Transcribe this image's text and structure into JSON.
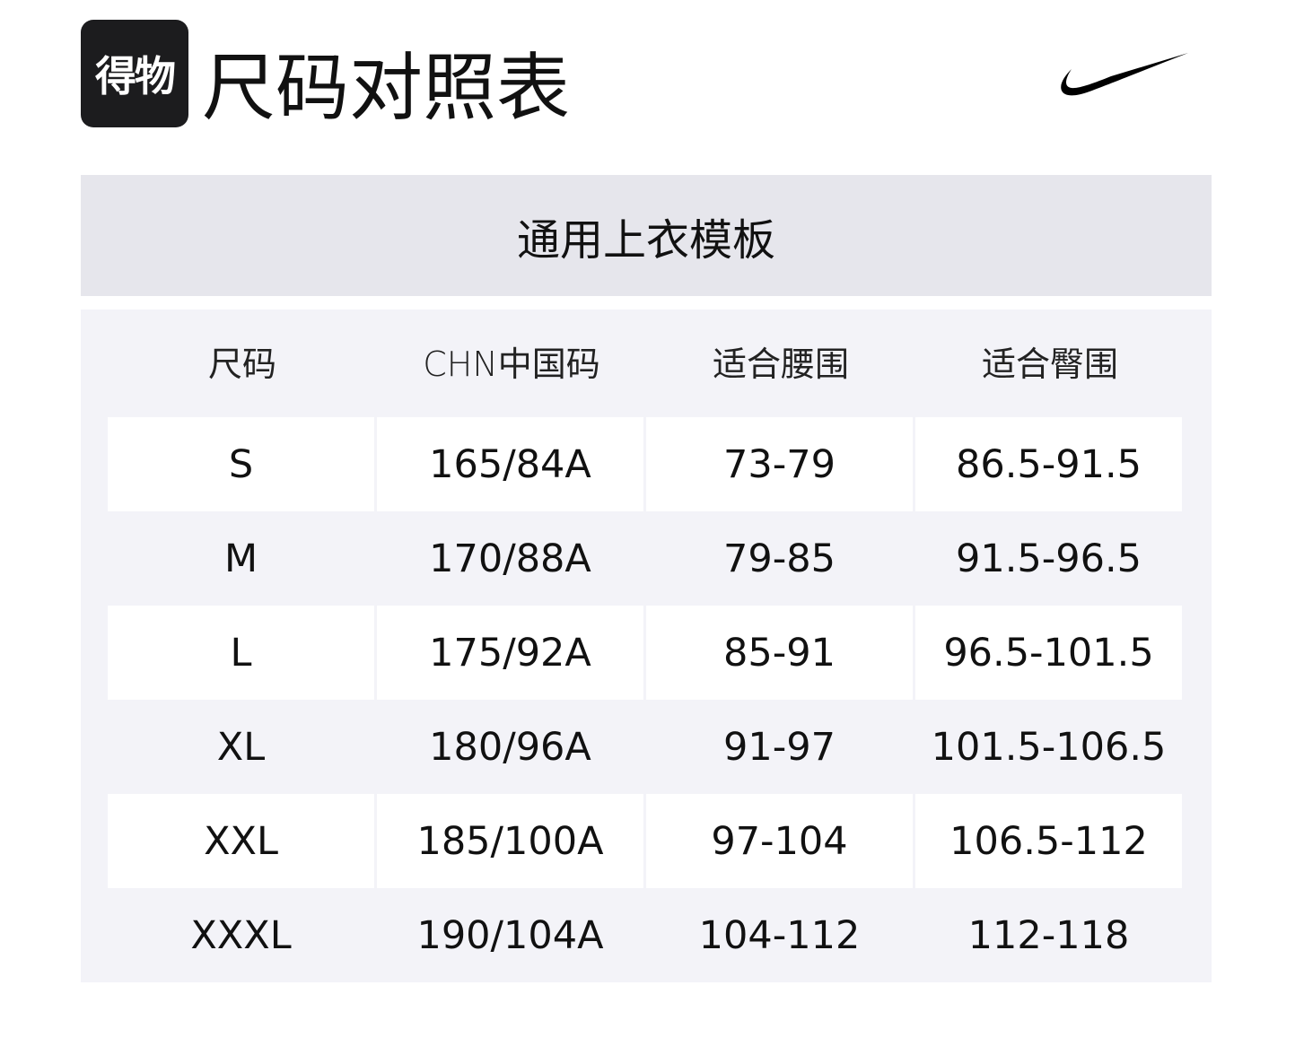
{
  "header": {
    "logo_text": "得物",
    "title": "尺码对照表",
    "brand_logo": "nike-swoosh"
  },
  "template_title": "通用上衣模板",
  "table": {
    "columns": [
      "尺码",
      "CHN中国码",
      "适合腰围",
      "适合臀围"
    ],
    "rows": [
      [
        "S",
        "165/84A",
        "73-79",
        "86.5-91.5"
      ],
      [
        "M",
        "170/88A",
        "79-85",
        "91.5-96.5"
      ],
      [
        "L",
        "175/92A",
        "85-91",
        "96.5-101.5"
      ],
      [
        "XL",
        "180/96A",
        "91-97",
        "101.5-106.5"
      ],
      [
        "XXL",
        "185/100A",
        "97-104",
        "106.5-112"
      ],
      [
        "XXXL",
        "190/104A",
        "104-112",
        "112-118"
      ]
    ]
  },
  "colors": {
    "band": "#e6e6ec",
    "table_bg": "#f3f3f8",
    "logo_bg": "#1c1c1e"
  }
}
